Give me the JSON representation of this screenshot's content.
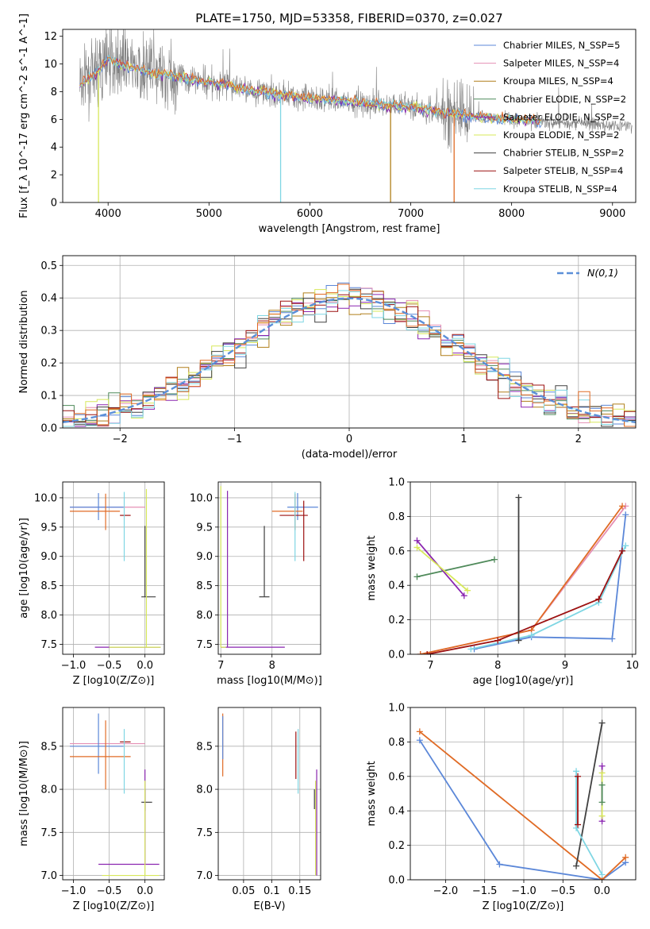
{
  "figure": {
    "title": "PLATE=1750, MJD=53358, FIBERID=0370, z=0.027"
  },
  "colors": {
    "chabrier_miles": "#5b87d8",
    "salpeter_miles": "#e58fb4",
    "kroupa_miles": "#b07f1a",
    "chabrier_elodie": "#4f8a5a",
    "salpeter_elodie": "#8a25b0",
    "kroupa_elodie": "#d7e85a",
    "chabrier_stelib": "#404040",
    "salpeter_stelib": "#9c1010",
    "kroupa_stelib": "#7fd6e3",
    "orange": "#e06b25",
    "data": "#808080",
    "normal_curve": "#5b8fd8"
  },
  "chart_data": [
    {
      "id": "spectrum",
      "type": "line",
      "xlabel": "wavelength [Angstrom, rest frame]",
      "ylabel": "Flux [f_λ 10^-17 erg cm^-2 s^-1 A^-1]",
      "xlim": [
        3550,
        9230
      ],
      "ylim": [
        0,
        12.5
      ],
      "xticks": [
        4000,
        5000,
        6000,
        7000,
        8000,
        9000
      ],
      "yticks": [
        0,
        2,
        4,
        6,
        8,
        10,
        12
      ],
      "grid": false,
      "legend_position": "top-right",
      "legend": [
        {
          "label": "Chabrier MILES, N_SSP=5",
          "color_key": "chabrier_miles"
        },
        {
          "label": "Salpeter MILES, N_SSP=4",
          "color_key": "salpeter_miles"
        },
        {
          "label": "Kroupa MILES, N_SSP=4",
          "color_key": "kroupa_miles"
        },
        {
          "label": "Chabrier ELODIE, N_SSP=2",
          "color_key": "chabrier_elodie"
        },
        {
          "label": "Salpeter ELODIE, N_SSP=2",
          "color_key": "salpeter_elodie"
        },
        {
          "label": "Kroupa ELODIE, N_SSP=2",
          "color_key": "kroupa_elodie"
        },
        {
          "label": "Chabrier STELIB, N_SSP=2",
          "color_key": "chabrier_stelib"
        },
        {
          "label": "Salpeter STELIB, N_SSP=4",
          "color_key": "salpeter_stelib"
        },
        {
          "label": "Kroupa STELIB, N_SSP=4",
          "color_key": "kroupa_stelib"
        }
      ],
      "data_range": [
        3720,
        9200
      ],
      "continuum": [
        [
          3720,
          8.5
        ],
        [
          3900,
          9.5
        ],
        [
          4000,
          10.3
        ],
        [
          4200,
          9.8
        ],
        [
          4500,
          9.3
        ],
        [
          5000,
          8.7
        ],
        [
          5500,
          8.0
        ],
        [
          6000,
          7.5
        ],
        [
          6500,
          7.2
        ],
        [
          7000,
          6.9
        ],
        [
          7500,
          6.3
        ],
        [
          8000,
          6.0
        ],
        [
          8500,
          5.8
        ],
        [
          9000,
          5.6
        ],
        [
          9200,
          5.5
        ]
      ],
      "drops": [
        {
          "x": 3905,
          "color_key": "kroupa_elodie"
        },
        {
          "x": 5710,
          "color_key": "kroupa_stelib"
        },
        {
          "x": 6800,
          "color_key": "kroupa_miles"
        },
        {
          "x": 7430,
          "color_key": "orange"
        }
      ]
    },
    {
      "id": "residuals",
      "type": "histogram",
      "xlabel": "(data-model)/error",
      "ylabel": "Normed distribution",
      "xlim": [
        -2.5,
        2.5
      ],
      "ylim": [
        0,
        0.53
      ],
      "xticks": [
        -2,
        -1,
        0,
        1,
        2
      ],
      "yticks": [
        0.0,
        0.1,
        0.2,
        0.3,
        0.4,
        0.5
      ],
      "grid": true,
      "legend_position": "top-right",
      "legend": [
        {
          "label": "N(0,1)",
          "color_key": "normal_curve",
          "style": "dashed"
        }
      ],
      "bin_width": 0.1,
      "series_colors": [
        "chabrier_miles",
        "salpeter_miles",
        "kroupa_miles",
        "chabrier_elodie",
        "salpeter_elodie",
        "kroupa_elodie",
        "chabrier_stelib",
        "salpeter_stelib",
        "kroupa_stelib",
        "orange"
      ]
    },
    {
      "id": "age_vs_Z",
      "type": "scatter",
      "xlabel": "Z [log10(Z/Z⊙)]",
      "ylabel": "age [log10(age/yr)]",
      "xlim": [
        -1.15,
        0.27
      ],
      "ylim": [
        7.33,
        10.27
      ],
      "xticks": [
        -1.0,
        -0.5,
        0.0
      ],
      "xtick_labels": [
        "−1.0",
        "−0.5",
        "0.0"
      ],
      "yticks": [
        7.5,
        8.0,
        8.5,
        9.0,
        9.5,
        10.0
      ],
      "grid": true,
      "crosses": [
        {
          "x": -0.45,
          "y": 9.84,
          "xl": -1.05,
          "xh": 0.0,
          "yl": 9.84,
          "yh": 9.84,
          "color_key": "salpeter_miles"
        },
        {
          "x": -0.65,
          "y": 9.84,
          "xl": -1.05,
          "xh": -0.3,
          "yl": 9.62,
          "yh": 10.08,
          "color_key": "chabrier_miles"
        },
        {
          "x": -0.55,
          "y": 9.77,
          "xl": -1.05,
          "xh": -0.35,
          "yl": 9.45,
          "yh": 10.07,
          "color_key": "orange"
        },
        {
          "x": -0.25,
          "y": 9.7,
          "xl": -0.35,
          "xh": -0.2,
          "yl": 9.7,
          "yh": 9.7,
          "color_key": "salpeter_stelib"
        },
        {
          "x": -0.29,
          "y": 9.3,
          "xl": -0.29,
          "xh": -0.29,
          "yl": 8.92,
          "yh": 10.1,
          "color_key": "kroupa_stelib"
        },
        {
          "x": 0.0,
          "y": 8.31,
          "xl": -0.05,
          "xh": 0.15,
          "yl": 8.31,
          "yh": 9.52,
          "color_key": "chabrier_stelib"
        },
        {
          "x": 0.0,
          "y": 7.45,
          "xl": -0.7,
          "xh": 0.22,
          "yl": 7.45,
          "yh": 7.45,
          "color_key": "salpeter_elodie"
        },
        {
          "x": 0.02,
          "y": 7.45,
          "xl": -0.5,
          "xh": 0.22,
          "yl": 7.45,
          "yh": 10.15,
          "color_key": "kroupa_elodie"
        }
      ]
    },
    {
      "id": "age_vs_mass",
      "type": "scatter",
      "xlabel": "mass [log10(M/M⊙)]",
      "ylabel": "",
      "xlim": [
        6.95,
        8.95
      ],
      "ylim": [
        7.33,
        10.27
      ],
      "xticks": [
        7,
        8
      ],
      "yticks": [
        7.5,
        8.0,
        8.5,
        9.0,
        9.5,
        10.0
      ],
      "grid": true,
      "crosses": [
        {
          "x": 8.5,
          "y": 9.84,
          "xl": 8.3,
          "xh": 8.9,
          "yl": 9.62,
          "yh": 10.08,
          "color_key": "chabrier_miles"
        },
        {
          "x": 8.45,
          "y": 9.77,
          "xl": 8.0,
          "xh": 8.6,
          "yl": 9.45,
          "yh": 10.07,
          "color_key": "orange"
        },
        {
          "x": 8.62,
          "y": 9.7,
          "xl": 8.15,
          "xh": 8.7,
          "yl": 8.92,
          "yh": 9.95,
          "color_key": "salpeter_stelib"
        },
        {
          "x": 8.45,
          "y": 9.3,
          "xl": 8.45,
          "xh": 8.45,
          "yl": 8.92,
          "yh": 10.1,
          "color_key": "kroupa_stelib"
        },
        {
          "x": 7.85,
          "y": 8.31,
          "xl": 7.75,
          "xh": 7.95,
          "yl": 8.31,
          "yh": 9.52,
          "color_key": "chabrier_stelib"
        },
        {
          "x": 7.13,
          "y": 7.45,
          "xl": 7.0,
          "xh": 8.25,
          "yl": 7.45,
          "yh": 10.12,
          "color_key": "salpeter_elodie"
        },
        {
          "x": 7.0,
          "y": 7.45,
          "xl": 7.0,
          "xh": 7.1,
          "yl": 7.45,
          "yh": 10.2,
          "color_key": "kroupa_elodie"
        }
      ]
    },
    {
      "id": "weight_vs_age",
      "type": "line",
      "xlabel": "age [log10(age/yr)]",
      "ylabel": "mass weight",
      "xlim": [
        6.7,
        10.05
      ],
      "ylim": [
        0,
        1.0
      ],
      "xticks": [
        7,
        8,
        9,
        10
      ],
      "yticks": [
        0.0,
        0.2,
        0.4,
        0.6,
        0.8,
        1.0
      ],
      "grid": true,
      "series": [
        {
          "color_key": "chabrier_miles",
          "points": [
            [
              7.65,
              0.03
            ],
            [
              8.5,
              0.1
            ],
            [
              9.7,
              0.09
            ],
            [
              9.9,
              0.81
            ]
          ]
        },
        {
          "color_key": "salpeter_miles",
          "points": [
            [
              6.85,
              0.0
            ],
            [
              8.5,
              0.14
            ],
            [
              9.9,
              0.86
            ]
          ]
        },
        {
          "color_key": "orange",
          "points": [
            [
              6.85,
              0.0
            ],
            [
              8.5,
              0.14
            ],
            [
              9.85,
              0.86
            ]
          ]
        },
        {
          "color_key": "kroupa_stelib",
          "points": [
            [
              7.6,
              0.03
            ],
            [
              8.5,
              0.11
            ],
            [
              9.5,
              0.3
            ],
            [
              9.9,
              0.63
            ]
          ]
        },
        {
          "color_key": "salpeter_stelib",
          "points": [
            [
              6.95,
              0.0
            ],
            [
              8.0,
              0.08
            ],
            [
              9.5,
              0.32
            ],
            [
              9.85,
              0.6
            ]
          ]
        },
        {
          "color_key": "chabrier_elodie",
          "points": [
            [
              6.8,
              0.45
            ],
            [
              7.95,
              0.55
            ]
          ]
        },
        {
          "color_key": "salpeter_elodie",
          "points": [
            [
              6.8,
              0.66
            ],
            [
              7.5,
              0.34
            ]
          ]
        },
        {
          "color_key": "kroupa_elodie",
          "points": [
            [
              6.8,
              0.62
            ],
            [
              7.55,
              0.37
            ]
          ]
        },
        {
          "color_key": "chabrier_stelib",
          "points": [
            [
              8.31,
              0.08
            ],
            [
              8.31,
              0.91
            ]
          ]
        }
      ]
    },
    {
      "id": "mass_vs_Z",
      "type": "scatter",
      "xlabel": "Z [log10(Z/Z⊙)]",
      "ylabel": "mass [log10(M/M⊙)]",
      "xlim": [
        -1.15,
        0.27
      ],
      "ylim": [
        6.95,
        8.95
      ],
      "xticks": [
        -1.0,
        -0.5,
        0.0
      ],
      "xtick_labels": [
        "−1.0",
        "−0.5",
        "0.0"
      ],
      "yticks": [
        7.0,
        7.5,
        8.0,
        8.5
      ],
      "grid": true,
      "crosses": [
        {
          "x": -0.55,
          "y": 8.53,
          "xl": -1.05,
          "xh": 0.0,
          "yl": 8.53,
          "yh": 8.53,
          "color_key": "salpeter_miles"
        },
        {
          "x": -0.65,
          "y": 8.5,
          "xl": -1.05,
          "xh": -0.3,
          "yl": 8.18,
          "yh": 8.88,
          "color_key": "chabrier_miles"
        },
        {
          "x": -0.55,
          "y": 8.38,
          "xl": -1.05,
          "xh": -0.2,
          "yl": 8.0,
          "yh": 8.8,
          "color_key": "orange"
        },
        {
          "x": -0.25,
          "y": 8.55,
          "xl": -0.35,
          "xh": -0.2,
          "yl": 8.55,
          "yh": 8.55,
          "color_key": "salpeter_stelib"
        },
        {
          "x": -0.29,
          "y": 8.4,
          "xl": -0.29,
          "xh": -0.29,
          "yl": 7.95,
          "yh": 8.7,
          "color_key": "kroupa_stelib"
        },
        {
          "x": 0.0,
          "y": 7.85,
          "xl": -0.05,
          "xh": 0.1,
          "yl": 7.75,
          "yh": 8.0,
          "color_key": "chabrier_stelib"
        },
        {
          "x": 0.0,
          "y": 7.13,
          "xl": -0.65,
          "xh": 0.2,
          "yl": 7.13,
          "yh": 8.23,
          "color_key": "salpeter_elodie"
        },
        {
          "x": 0.0,
          "y": 7.0,
          "xl": -0.6,
          "xh": 0.2,
          "yl": 7.0,
          "yh": 8.1,
          "color_key": "kroupa_elodie"
        }
      ]
    },
    {
      "id": "mass_vs_ebv",
      "type": "scatter",
      "xlabel": "E(B-V)",
      "ylabel": "",
      "xlim": [
        0.005,
        0.187
      ],
      "ylim": [
        6.95,
        8.95
      ],
      "xticks": [
        0.05,
        0.1,
        0.15
      ],
      "yticks": [
        7.0,
        7.5,
        8.0,
        8.5
      ],
      "grid": true,
      "crosses": [
        {
          "x": 0.013,
          "y": 8.5,
          "xl": 0.013,
          "xh": 0.013,
          "yl": 8.15,
          "yh": 8.88,
          "color_key": "orange"
        },
        {
          "x": 0.013,
          "y": 8.5,
          "xl": 0.013,
          "xh": 0.013,
          "yl": 8.35,
          "yh": 8.85,
          "color_key": "chabrier_miles"
        },
        {
          "x": 0.143,
          "y": 8.4,
          "xl": 0.143,
          "xh": 0.143,
          "yl": 8.12,
          "yh": 8.67,
          "color_key": "salpeter_stelib"
        },
        {
          "x": 0.147,
          "y": 8.3,
          "xl": 0.147,
          "xh": 0.147,
          "yl": 7.95,
          "yh": 8.7,
          "color_key": "kroupa_stelib"
        },
        {
          "x": 0.176,
          "y": 7.9,
          "xl": 0.176,
          "xh": 0.176,
          "yl": 7.77,
          "yh": 8.0,
          "color_key": "chabrier_stelib"
        },
        {
          "x": 0.18,
          "y": 7.5,
          "xl": 0.18,
          "xh": 0.18,
          "yl": 7.0,
          "yh": 8.23,
          "color_key": "salpeter_elodie"
        },
        {
          "x": 0.178,
          "y": 7.5,
          "xl": 0.178,
          "xh": 0.178,
          "yl": 7.0,
          "yh": 8.1,
          "color_key": "kroupa_elodie"
        }
      ]
    },
    {
      "id": "weight_vs_Z",
      "type": "line",
      "xlabel": "Z [log10(Z/Z⊙)]",
      "ylabel": "mass weight",
      "xlim": [
        -2.45,
        0.43
      ],
      "ylim": [
        0,
        1.0
      ],
      "xticks": [
        -2.0,
        -1.5,
        -1.0,
        -0.5,
        0.0
      ],
      "xtick_labels": [
        "−2.0",
        "−1.5",
        "−1.0",
        "−0.5",
        "0.0"
      ],
      "yticks": [
        0.0,
        0.2,
        0.4,
        0.6,
        0.8,
        1.0
      ],
      "grid": true,
      "series": [
        {
          "color_key": "chabrier_miles",
          "points": [
            [
              -2.33,
              0.81
            ],
            [
              -1.31,
              0.09
            ],
            [
              0.0,
              0.0
            ],
            [
              0.3,
              0.1
            ]
          ]
        },
        {
          "color_key": "orange",
          "points": [
            [
              -2.33,
              0.86
            ],
            [
              0.0,
              0.0
            ],
            [
              0.3,
              0.13
            ]
          ]
        },
        {
          "color_key": "chabrier_stelib",
          "points": [
            [
              -0.33,
              0.08
            ],
            [
              0.0,
              0.91
            ]
          ]
        },
        {
          "color_key": "kroupa_stelib",
          "points": [
            [
              -0.33,
              0.63
            ],
            [
              -0.33,
              0.3
            ],
            [
              0.0,
              0.03
            ]
          ]
        },
        {
          "color_key": "salpeter_stelib",
          "points": [
            [
              -0.31,
              0.6
            ],
            [
              -0.31,
              0.32
            ]
          ]
        },
        {
          "color_key": "salpeter_elodie",
          "points": [
            [
              0.0,
              0.66
            ],
            [
              0.0,
              0.34
            ]
          ]
        },
        {
          "color_key": "kroupa_elodie",
          "points": [
            [
              0.0,
              0.62
            ],
            [
              0.0,
              0.37
            ]
          ]
        },
        {
          "color_key": "chabrier_elodie",
          "points": [
            [
              0.0,
              0.55
            ],
            [
              0.0,
              0.45
            ]
          ]
        }
      ]
    }
  ]
}
